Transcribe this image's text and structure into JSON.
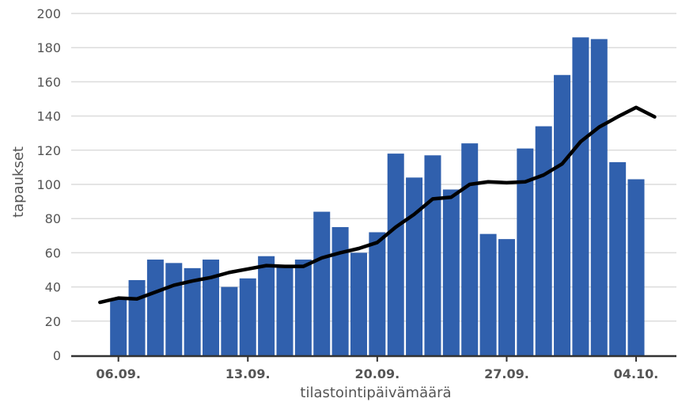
{
  "chart_data": {
    "type": "bar",
    "xlabel": "tilastointipäivämäärä",
    "ylabel": "tapaukset",
    "ylim": [
      0,
      200
    ],
    "yticks": [
      0,
      20,
      40,
      60,
      80,
      100,
      120,
      140,
      160,
      180,
      200
    ],
    "grid": true,
    "x_tick_labels": [
      "06.09.",
      "13.09.",
      "20.09.",
      "27.09.",
      "04.10."
    ],
    "x_tick_day_index": [
      1,
      8,
      15,
      22,
      29
    ],
    "bar_color": "#3060ad",
    "line_color": "#000000",
    "categories": [
      "05.09.",
      "06.09.",
      "07.09.",
      "08.09.",
      "09.09.",
      "10.09.",
      "11.09.",
      "12.09.",
      "13.09.",
      "14.09.",
      "15.09.",
      "16.09.",
      "17.09.",
      "18.09.",
      "19.09.",
      "20.09.",
      "21.09.",
      "22.09.",
      "23.09.",
      "24.09.",
      "25.09.",
      "26.09.",
      "27.09.",
      "28.09.",
      "29.09.",
      "30.09.",
      "01.10.",
      "02.10.",
      "03.10.",
      "04.10.",
      "05.10."
    ],
    "series": [
      {
        "type": "bar",
        "values": [
          null,
          33,
          44,
          56,
          54,
          51,
          56,
          40,
          45,
          58,
          52,
          56,
          84,
          75,
          60,
          72,
          118,
          104,
          117,
          97,
          124,
          71,
          68,
          121,
          134,
          164,
          186,
          185,
          113,
          103,
          null
        ]
      },
      {
        "type": "line",
        "values": [
          31,
          33.5,
          33,
          37,
          41,
          43.5,
          45.5,
          48.5,
          50.5,
          52.5,
          52,
          52,
          57,
          60,
          62.5,
          66,
          75,
          82.5,
          91.5,
          92.5,
          100,
          101.5,
          101,
          101.5,
          105.5,
          112,
          125,
          133.5,
          139.5,
          145,
          139.5
        ]
      }
    ]
  }
}
